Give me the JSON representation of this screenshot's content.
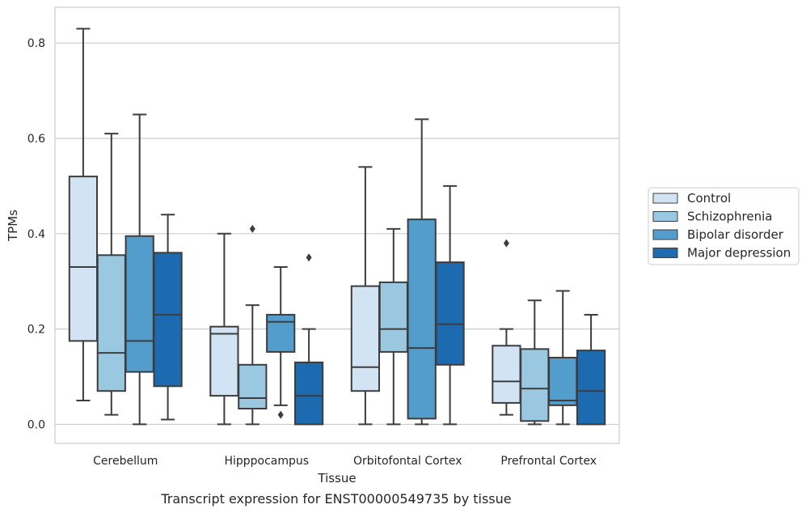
{
  "caption": "Transcript expression for ENST00000549735 by tissue",
  "chart_data": {
    "type": "box",
    "xlabel": "Tissue",
    "ylabel": "TPMs",
    "ylim": [
      -0.04,
      0.875
    ],
    "yticks": [
      "0.0",
      "0.2",
      "0.4",
      "0.6",
      "0.8"
    ],
    "categories": [
      "Cerebellum",
      "Hipppocampus",
      "Orbitofontal Cortex",
      "Prefrontal Cortex"
    ],
    "grid": "horizontal",
    "legend_position": "right",
    "series": [
      {
        "name": "Control",
        "color": "#d2e3f3",
        "boxes": [
          {
            "whislo": 0.05,
            "q1": 0.175,
            "med": 0.33,
            "q3": 0.52,
            "whishi": 0.83,
            "fliers": []
          },
          {
            "whislo": 0.0,
            "q1": 0.06,
            "med": 0.19,
            "q3": 0.205,
            "whishi": 0.4,
            "fliers": []
          },
          {
            "whislo": 0.0,
            "q1": 0.07,
            "med": 0.12,
            "q3": 0.29,
            "whishi": 0.54,
            "fliers": []
          },
          {
            "whislo": 0.02,
            "q1": 0.045,
            "med": 0.09,
            "q3": 0.165,
            "whishi": 0.2,
            "fliers": [
              0.38
            ]
          }
        ]
      },
      {
        "name": "Schizophrenia",
        "color": "#9ac8e0",
        "boxes": [
          {
            "whislo": 0.02,
            "q1": 0.07,
            "med": 0.15,
            "q3": 0.355,
            "whishi": 0.61,
            "fliers": []
          },
          {
            "whislo": 0.0,
            "q1": 0.033,
            "med": 0.055,
            "q3": 0.125,
            "whishi": 0.25,
            "fliers": [
              0.41
            ]
          },
          {
            "whislo": 0.0,
            "q1": 0.152,
            "med": 0.2,
            "q3": 0.298,
            "whishi": 0.41,
            "fliers": []
          },
          {
            "whislo": 0.0,
            "q1": 0.007,
            "med": 0.075,
            "q3": 0.158,
            "whishi": 0.26,
            "fliers": []
          }
        ]
      },
      {
        "name": "Bipolar disorder",
        "color": "#529dcc",
        "boxes": [
          {
            "whislo": 0.0,
            "q1": 0.11,
            "med": 0.175,
            "q3": 0.395,
            "whishi": 0.65,
            "fliers": []
          },
          {
            "whislo": 0.04,
            "q1": 0.152,
            "med": 0.215,
            "q3": 0.23,
            "whishi": 0.33,
            "fliers": [
              0.02
            ]
          },
          {
            "whislo": 0.0,
            "q1": 0.012,
            "med": 0.16,
            "q3": 0.43,
            "whishi": 0.64,
            "fliers": []
          },
          {
            "whislo": 0.0,
            "q1": 0.04,
            "med": 0.05,
            "q3": 0.14,
            "whishi": 0.28,
            "fliers": []
          }
        ]
      },
      {
        "name": "Major depression",
        "color": "#1c6aaf",
        "boxes": [
          {
            "whislo": 0.01,
            "q1": 0.08,
            "med": 0.23,
            "q3": 0.36,
            "whishi": 0.44,
            "fliers": []
          },
          {
            "whislo": 0.0,
            "q1": 0.0,
            "med": 0.06,
            "q3": 0.13,
            "whishi": 0.2,
            "fliers": [
              0.35
            ]
          },
          {
            "whislo": 0.0,
            "q1": 0.125,
            "med": 0.21,
            "q3": 0.34,
            "whishi": 0.5,
            "fliers": []
          },
          {
            "whislo": 0.0,
            "q1": 0.0,
            "med": 0.07,
            "q3": 0.155,
            "whishi": 0.23,
            "fliers": []
          }
        ]
      }
    ]
  }
}
